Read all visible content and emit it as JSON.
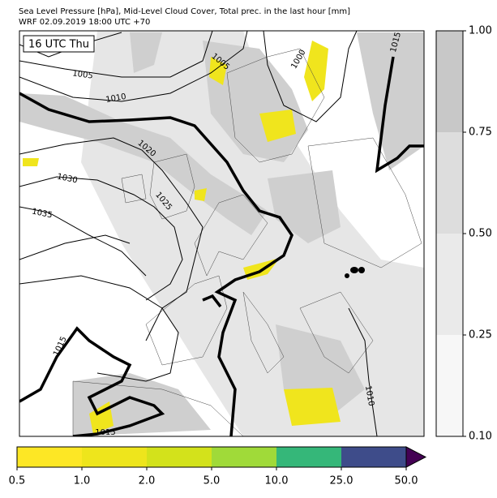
{
  "title": "Sea Level Pressure [hPa], Mid-Level Cloud Cover, Total prec. in the last hour [mm]",
  "subtitle": "WRF 02.09.2019 18:00 UTC +70",
  "time_label": "16 UTC Thu",
  "contour_labels": [
    "1005",
    "1005",
    "1000",
    "1015",
    "1010",
    "1020",
    "1030",
    "1025",
    "1035",
    "1015",
    "1010",
    "1015"
  ],
  "cloud_cover_colorbar": {
    "ticks": [
      "0.10",
      "0.25",
      "0.50",
      "0.75",
      "1.00"
    ],
    "colors": [
      "#f7f7f7",
      "#eaeaea",
      "#dddddd",
      "#c8c8c8"
    ]
  },
  "precipitation_colorbar": {
    "ticks": [
      "0.5",
      "1.0",
      "2.0",
      "5.0",
      "10.0",
      "25.0",
      "50.0"
    ],
    "colors": [
      "#fde725",
      "#eee51c",
      "#d3e21b",
      "#a0da39",
      "#35b779",
      "#3e4c8a"
    ],
    "extend_color": "#440154"
  }
}
